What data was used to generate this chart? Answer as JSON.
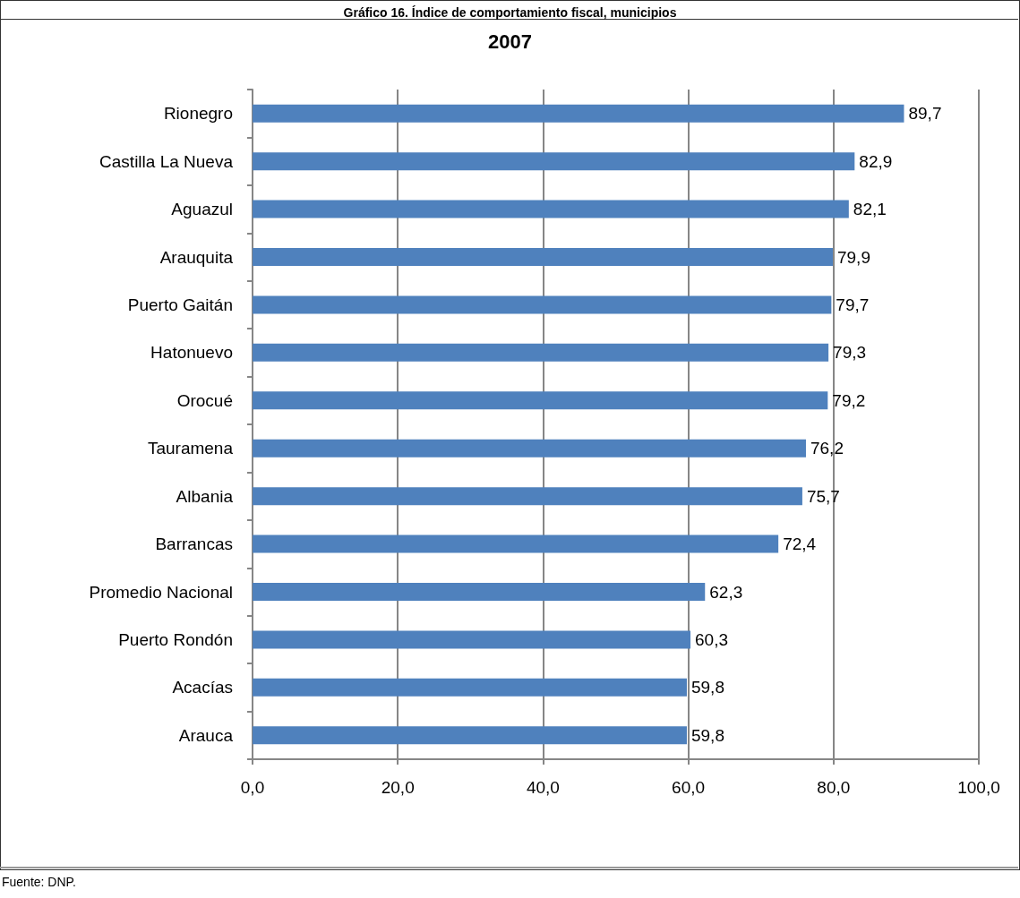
{
  "chart_data": {
    "type": "bar",
    "orientation": "horizontal",
    "title": "Gráfico 16. Índice de comportamiento fiscal, municipios",
    "subtitle": "2007",
    "categories": [
      "Rionegro",
      "Castilla La Nueva",
      "Aguazul",
      "Arauquita",
      "Puerto Gaitán",
      "Hatonuevo",
      "Orocué",
      "Tauramena",
      "Albania",
      "Barrancas",
      "Promedio Nacional",
      "Puerto Rondón",
      "Acacías",
      "Arauca"
    ],
    "values": [
      89.7,
      82.9,
      82.1,
      79.9,
      79.7,
      79.3,
      79.2,
      76.2,
      75.7,
      72.4,
      62.3,
      60.3,
      59.8,
      59.8
    ],
    "value_labels": [
      "89,7",
      "82,9",
      "82,1",
      "79,9",
      "79,7",
      "79,3",
      "79,2",
      "76,2",
      "75,7",
      "72,4",
      "62,3",
      "60,3",
      "59,8",
      "59,8"
    ],
    "color": "#4f81bd",
    "xlim": [
      0,
      100
    ],
    "xticks": [
      {
        "value": 0,
        "label": "0,0"
      },
      {
        "value": 20,
        "label": "20,0"
      },
      {
        "value": 40,
        "label": "40,0"
      },
      {
        "value": 60,
        "label": "60,0"
      },
      {
        "value": 80,
        "label": "80,0"
      },
      {
        "value": 100,
        "label": "100,0"
      }
    ],
    "grid": "x",
    "annotations": [
      "Fuente: DNP."
    ]
  }
}
